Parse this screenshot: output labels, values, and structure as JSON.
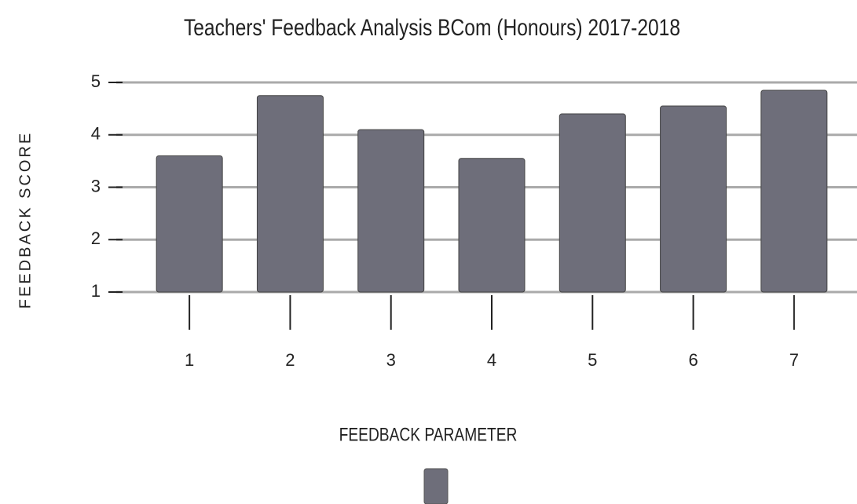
{
  "chart_data": {
    "type": "bar",
    "title": "Teachers' Feedback Analysis BCom (Honours) 2017-2018",
    "xlabel": "FEEDBACK PARAMETER",
    "ylabel": "FEEDBACK SCORE",
    "categories": [
      "1",
      "2",
      "3",
      "4",
      "5",
      "6",
      "7"
    ],
    "values": [
      3.6,
      4.75,
      4.1,
      3.55,
      4.4,
      4.55,
      4.85
    ],
    "color": "#6e6e7a",
    "ylim": [
      1,
      5
    ],
    "yticks": [
      1,
      2,
      3,
      4,
      5
    ],
    "grid": true
  }
}
